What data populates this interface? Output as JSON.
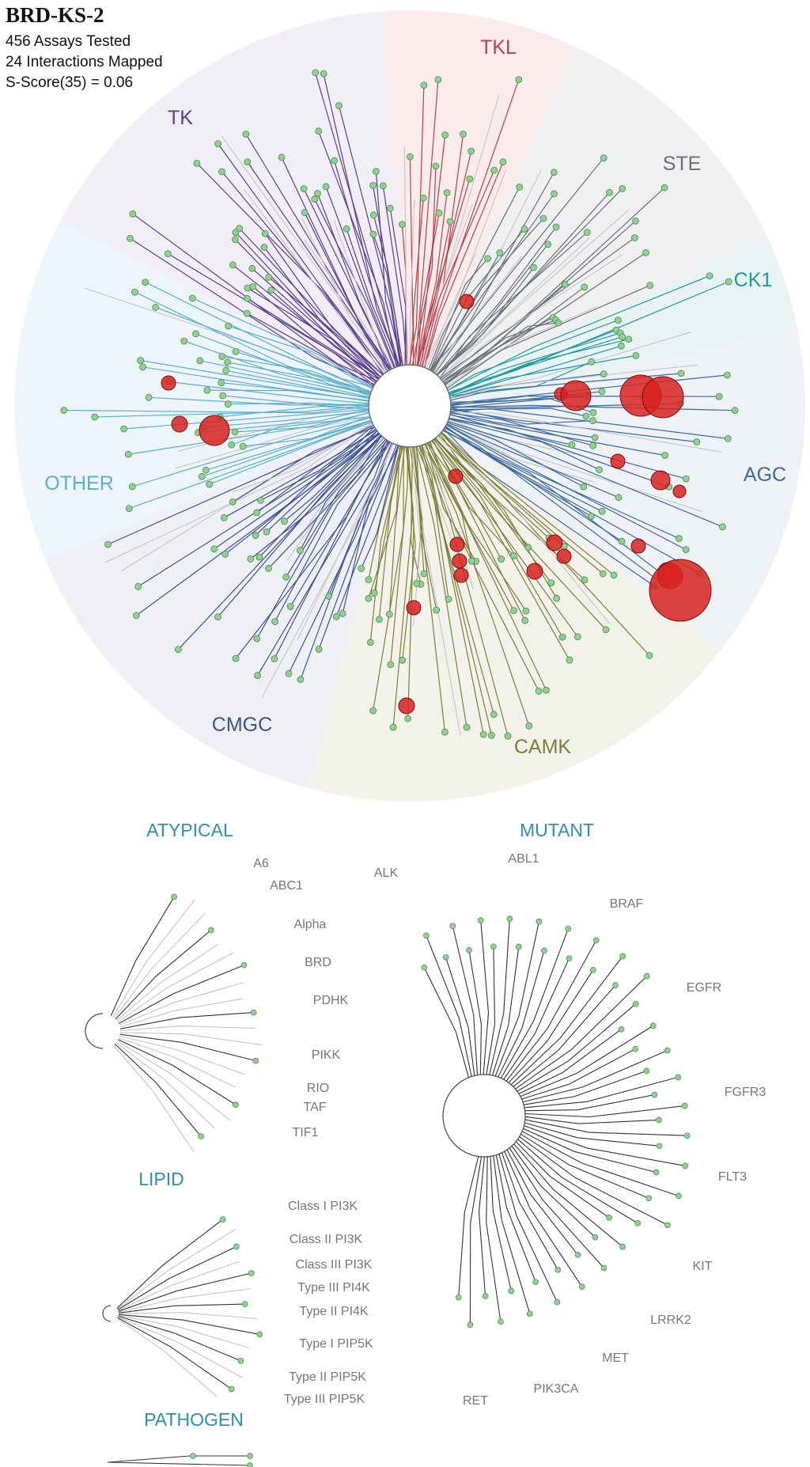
{
  "compound": "BRD-KS-2",
  "stats": {
    "assays": "456 Assays Tested",
    "interactions": "24 Interactions Mapped",
    "sscore": "S-Score(35) = 0.06"
  },
  "colors": {
    "TK": "#5a3f8f",
    "TKL": "#b8404a",
    "STE": "#6a6f78",
    "CK1": "#1f9a9e",
    "AGC": "#3d6a9e",
    "CAMK": "#7d7d3a",
    "CMGC": "#3c5391",
    "OTHER": "#5aaed0",
    "section": "#2a8fb5",
    "sublabel": "#777777",
    "hit": "#d8231f",
    "node": "#90d090"
  },
  "kinome_groups": [
    {
      "name": "TK",
      "label": "TK"
    },
    {
      "name": "TKL",
      "label": "TKL"
    },
    {
      "name": "STE",
      "label": "STE"
    },
    {
      "name": "CK1",
      "label": "CK1"
    },
    {
      "name": "AGC",
      "label": "AGC"
    },
    {
      "name": "CAMK",
      "label": "CAMK"
    },
    {
      "name": "CMGC",
      "label": "CMGC"
    },
    {
      "name": "OTHER",
      "label": "OTHER"
    }
  ],
  "sections": {
    "atypical": {
      "title": "ATYPICAL",
      "labels": [
        "A6",
        "ABC1",
        "Alpha",
        "BRD",
        "PDHK",
        "PIKK",
        "RIO",
        "TAF",
        "TIF1"
      ]
    },
    "lipid": {
      "title": "LIPID",
      "labels": [
        "Class I PI3K",
        "Class II PI3K",
        "Class III PI3K",
        "Type III PI4K",
        "Type II PI4K",
        "Type I PIP5K",
        "Type II PIP5K",
        "Type III PIP5K"
      ]
    },
    "pathogen": {
      "title": "PATHOGEN"
    },
    "mutant": {
      "title": "MUTANT",
      "labels": [
        "ALK",
        "ABL1",
        "BRAF",
        "EGFR",
        "FGFR3",
        "FLT3",
        "KIT",
        "LRRK2",
        "MET",
        "PIK3CA",
        "RET"
      ]
    }
  }
}
